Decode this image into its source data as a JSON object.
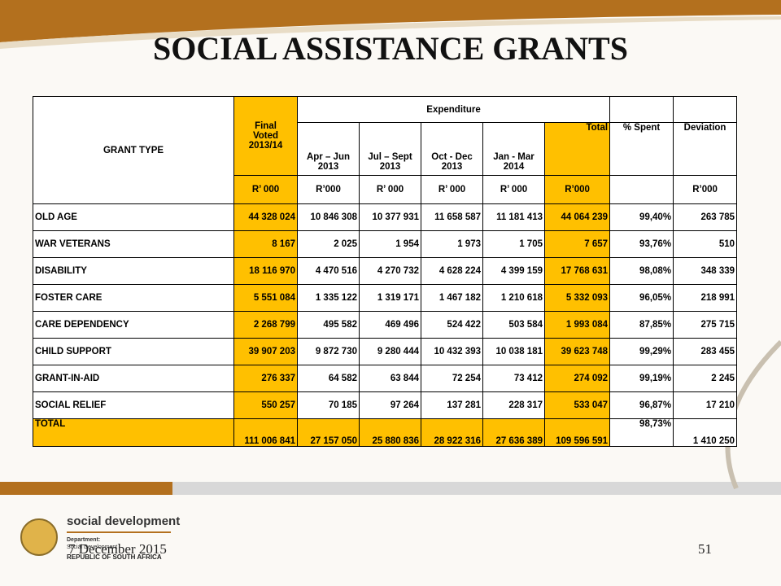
{
  "title": "SOCIAL ASSISTANCE GRANTS",
  "table": {
    "header": {
      "grant_type": "GRANT TYPE",
      "final_voted": "Final Voted 2013/14",
      "expenditure": "Expenditure",
      "periods": [
        "Apr – Jun 2013",
        "Jul – Sept 2013",
        "Oct - Dec 2013",
        "Jan - Mar 2014"
      ],
      "total": "Total",
      "spent": "% Spent",
      "deviation": "Deviation"
    },
    "units": [
      "R’ 000",
      "R’000",
      "R’ 000",
      "R’ 000",
      "R’ 000",
      "R’000",
      "R’000"
    ],
    "rows": [
      [
        "OLD AGE",
        "44 328 024",
        "10 846 308",
        "10 377 931",
        "11 658 587",
        "11 181 413",
        "44 064 239",
        "99,40%",
        "263 785"
      ],
      [
        "WAR VETERANS",
        "8 167",
        "2 025",
        "1 954",
        "1 973",
        "1 705",
        "7 657",
        "93,76%",
        "510"
      ],
      [
        "DISABILITY",
        "18 116 970",
        "4 470 516",
        "4 270 732",
        "4 628 224",
        "4 399 159",
        "17 768 631",
        "98,08%",
        "348 339"
      ],
      [
        "FOSTER CARE",
        "5 551 084",
        "1 335 122",
        "1 319 171",
        "1 467 182",
        "1 210 618",
        "5 332 093",
        "96,05%",
        "218 991"
      ],
      [
        "CARE DEPENDENCY",
        "2 268 799",
        "495 582",
        "469 496",
        "524 422",
        "503 584",
        "1 993 084",
        "87,85%",
        "275 715"
      ],
      [
        "CHILD SUPPORT",
        "39 907 203",
        "9 872 730",
        "9 280 444",
        "10 432 393",
        "10 038 181",
        "39 623 748",
        "99,29%",
        "283 455"
      ],
      [
        "GRANT-IN-AID",
        "276 337",
        "64 582",
        "63 844",
        "72 254",
        "73 412",
        "274 092",
        "99,19%",
        "2 245"
      ],
      [
        "SOCIAL RELIEF",
        "550 257",
        "70 185",
        "97 264",
        "137 281",
        "228 317",
        "533 047",
        "96,87%",
        "17 210"
      ],
      [
        "TOTAL",
        "111 006 841",
        "27 157 050",
        "25 880 836",
        "28 922 316",
        "27 636 389",
        "109 596 591",
        "98,73%",
        "1 410 250"
      ]
    ]
  },
  "footer": {
    "date": "7 December 2015",
    "page": "51",
    "logo": {
      "name": "social development",
      "department": "Department:",
      "department_name": "Social Development",
      "country": "REPUBLIC OF SOUTH AFRICA"
    }
  }
}
